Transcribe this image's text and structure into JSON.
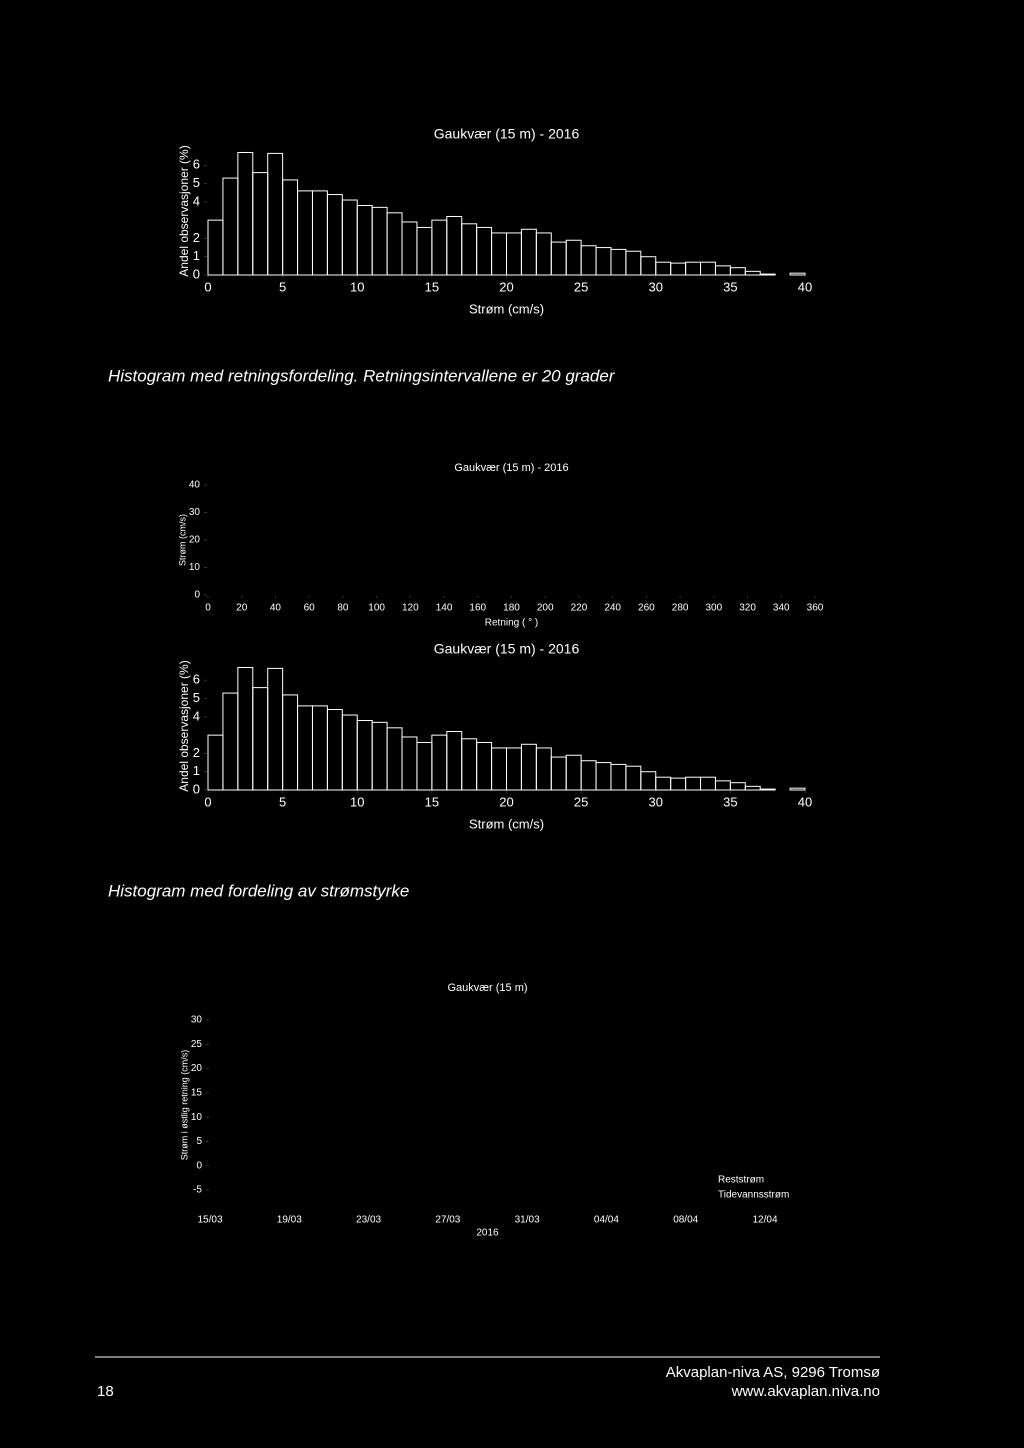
{
  "captions": [
    "Histogram med retningsfordeling. Retningsintervallene er 20 grader",
    "Histogram med fordeling av strømstyrke"
  ],
  "footer": {
    "page": "18",
    "company": "Akvaplan-niva AS, 9296 Tromsø",
    "url": "www.akvaplan.niva.no"
  },
  "chart_data": [
    {
      "type": "histogram",
      "title": "Gaukvær (15 m) - 2016",
      "xlabel": "Strøm (cm/s)",
      "ylabel": "Andel observasjoner (%)",
      "bins": [
        0,
        1,
        2,
        3,
        4,
        5,
        6,
        7,
        8,
        9,
        10,
        11,
        12,
        13,
        14,
        15,
        16,
        17,
        18,
        19,
        20,
        21,
        22,
        23,
        24,
        25,
        26,
        27,
        28,
        29,
        30,
        31,
        32,
        33,
        34,
        35,
        36,
        37,
        38,
        39,
        40
      ],
      "values": [
        3.0,
        5.3,
        6.7,
        5.6,
        6.65,
        5.2,
        4.6,
        4.6,
        4.4,
        4.1,
        3.8,
        3.7,
        3.4,
        2.9,
        2.6,
        3.0,
        3.2,
        2.8,
        2.6,
        2.3,
        2.3,
        2.5,
        2.3,
        1.8,
        1.9,
        1.6,
        1.5,
        1.4,
        1.3,
        1.0,
        0.7,
        0.65,
        0.7,
        0.7,
        0.5,
        0.4,
        0.2,
        0.05,
        0,
        0.1
      ],
      "color": "#ffffff",
      "xlim": [
        0,
        40
      ],
      "xticks": [
        0,
        5,
        10,
        15,
        20,
        25,
        30,
        35,
        40
      ],
      "ylim": [
        0,
        7
      ],
      "yticks": [
        0,
        1,
        2,
        4,
        5,
        6
      ]
    },
    {
      "type": "scatter",
      "title": "Gaukvær (15 m) - 2016",
      "xlabel": "Retning ( ° )",
      "ylabel": "Strøm (cm/s)",
      "xlim": [
        0,
        360
      ],
      "xticks": [
        0,
        20,
        40,
        60,
        80,
        100,
        120,
        140,
        160,
        180,
        200,
        220,
        240,
        260,
        280,
        300,
        320,
        340,
        360
      ],
      "ylim": [
        0,
        40
      ],
      "yticks": [
        0,
        10,
        20,
        30,
        40
      ]
    },
    {
      "type": "histogram",
      "title": "Gaukvær (15 m) - 2016",
      "xlabel": "Strøm (cm/s)",
      "ylabel": "Andel observasjoner (%)",
      "bins": [
        0,
        1,
        2,
        3,
        4,
        5,
        6,
        7,
        8,
        9,
        10,
        11,
        12,
        13,
        14,
        15,
        16,
        17,
        18,
        19,
        20,
        21,
        22,
        23,
        24,
        25,
        26,
        27,
        28,
        29,
        30,
        31,
        32,
        33,
        34,
        35,
        36,
        37,
        38,
        39,
        40
      ],
      "values": [
        3.0,
        5.3,
        6.7,
        5.6,
        6.65,
        5.2,
        4.6,
        4.6,
        4.4,
        4.1,
        3.8,
        3.7,
        3.4,
        2.9,
        2.6,
        3.0,
        3.2,
        2.8,
        2.6,
        2.3,
        2.3,
        2.5,
        2.3,
        1.8,
        1.9,
        1.6,
        1.5,
        1.4,
        1.3,
        1.0,
        0.7,
        0.65,
        0.7,
        0.7,
        0.5,
        0.4,
        0.2,
        0.05,
        0,
        0.1
      ],
      "color": "#ffffff",
      "xlim": [
        0,
        40
      ],
      "xticks": [
        0,
        5,
        10,
        15,
        20,
        25,
        30,
        35,
        40
      ],
      "ylim": [
        0,
        7
      ],
      "yticks": [
        0,
        1,
        2,
        4,
        5,
        6
      ]
    },
    {
      "type": "line",
      "title": "Gaukvær (15 m)",
      "xlabel": "2016",
      "ylabel": "Strøm i østlig retning (cm/s)",
      "xticks": [
        "15/03",
        "19/03",
        "23/03",
        "27/03",
        "31/03",
        "04/04",
        "08/04",
        "12/04"
      ],
      "ylim": [
        -5,
        30
      ],
      "yticks": [
        -5,
        0,
        5,
        10,
        15,
        20,
        25,
        30
      ],
      "series": [
        {
          "name": "Reststrøm",
          "color": "#000000"
        },
        {
          "name": "Tidevannsstrøm",
          "color": "#000000"
        }
      ]
    }
  ]
}
